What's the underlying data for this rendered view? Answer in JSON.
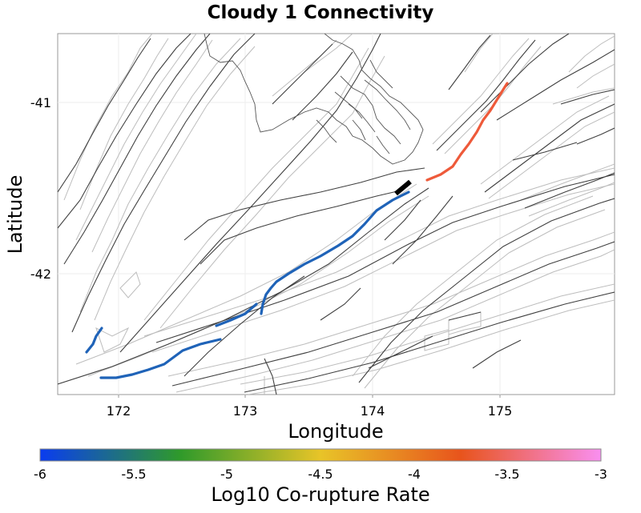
{
  "title": "Cloudy 1 Connectivity",
  "axes": {
    "xlabel": "Longitude",
    "ylabel": "Latitude",
    "xticks": [
      "172",
      "173",
      "174",
      "175"
    ],
    "yticks": [
      "-41",
      "-42"
    ]
  },
  "colorbar": {
    "label": "Log10 Co-rupture Rate",
    "ticks": [
      "-6",
      "-5.5",
      "-5",
      "-4.5",
      "-4",
      "-3.5",
      "-3"
    ],
    "colors": [
      "#0a3cf0",
      "#2f9a2a",
      "#e8c428",
      "#e8541c",
      "#f98ff0"
    ]
  },
  "colors": {
    "fault_trace": "#404040",
    "fault_polygon": "#b8b8b8",
    "coastline": "#555555",
    "highlight_blue": "#1f63b8",
    "highlight_orange": "#ee5a3a",
    "source_section": "#000000",
    "grid": "#eeeeee"
  },
  "legend_icons": {
    "source": "black-source-segment",
    "low_rate": "blue-rupture-trace",
    "high_rate": "orange-rupture-trace"
  }
}
